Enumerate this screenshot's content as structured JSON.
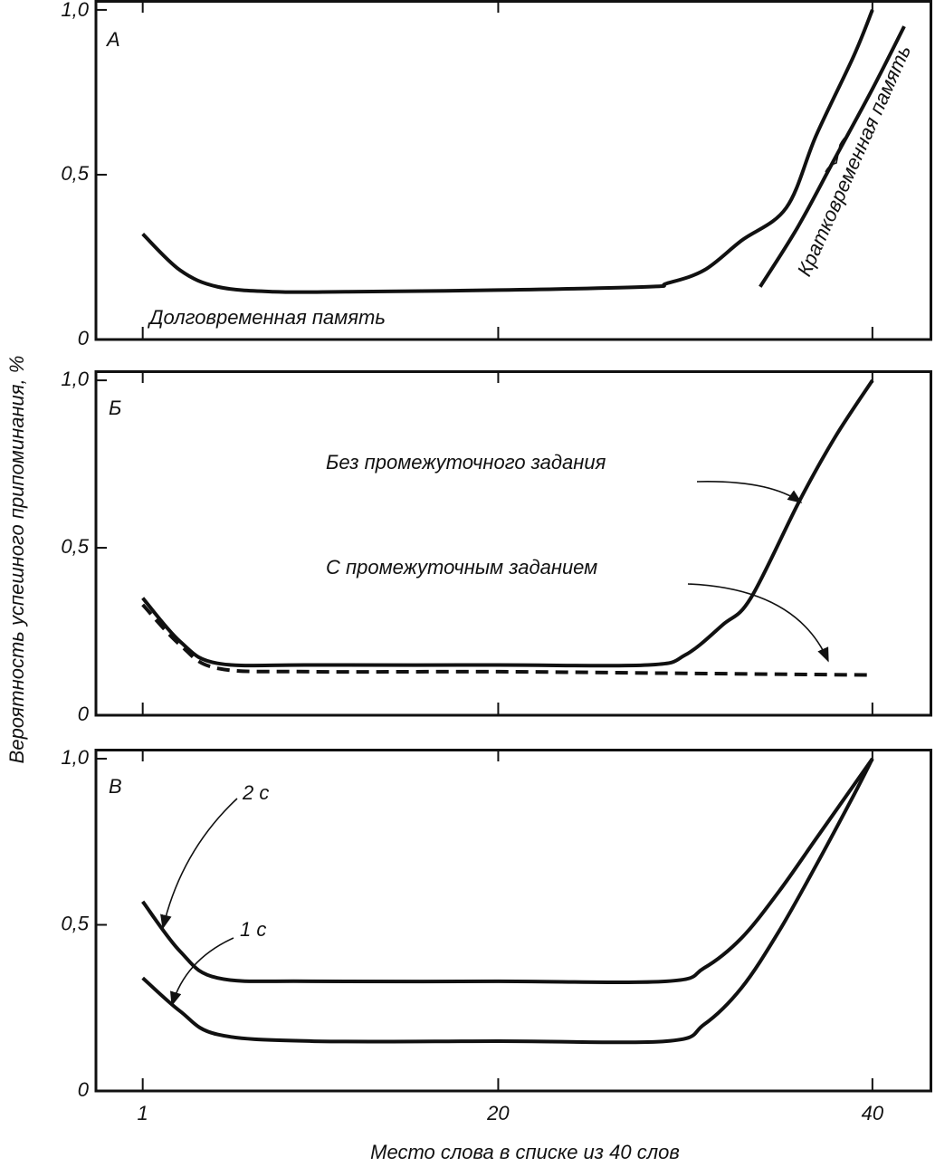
{
  "chart_data": [
    {
      "type": "line",
      "label": "А",
      "xlim": [
        -1.5,
        43.2
      ],
      "ylim": [
        0,
        1.03
      ],
      "xticks": [
        1,
        20,
        40
      ],
      "yticks": [
        0,
        {
          "value": 0.5,
          "label": "0,5"
        },
        {
          "value": 1,
          "label": "1,0"
        }
      ],
      "annotations": [
        "Долговременная память",
        "Кратковременная память"
      ],
      "series": [
        {
          "color": "#111111",
          "dashed": false,
          "x": [
            1,
            3,
            5,
            8,
            12,
            20,
            28,
            29,
            31,
            33,
            35.4,
            37,
            39,
            40
          ],
          "values": [
            0.32,
            0.21,
            0.16,
            0.145,
            0.145,
            0.15,
            0.16,
            0.17,
            0.21,
            0.3,
            0.4,
            0.62,
            0.86,
            1.0
          ]
        },
        {
          "color": "#111111",
          "dashed": false,
          "x": [
            34,
            36,
            38,
            40,
            41.7
          ],
          "values": [
            0.16,
            0.34,
            0.55,
            0.76,
            0.95
          ]
        }
      ]
    },
    {
      "type": "line",
      "label": "Б",
      "xlim": [
        -1.5,
        43.2
      ],
      "ylim": [
        0,
        1.03
      ],
      "xticks": [
        1,
        20,
        40
      ],
      "yticks": [
        0,
        {
          "value": 0.5,
          "label": "0,5"
        },
        {
          "value": 1,
          "label": "1,0"
        }
      ],
      "series": [
        {
          "name": "Без промежуточного задания",
          "color": "#111111",
          "dashed": false,
          "x": [
            1,
            3,
            5,
            10,
            20,
            28,
            30,
            32,
            33.5,
            36.1,
            38,
            40
          ],
          "values": [
            0.35,
            0.22,
            0.155,
            0.15,
            0.15,
            0.15,
            0.18,
            0.27,
            0.35,
            0.64,
            0.83,
            1.0
          ]
        },
        {
          "name": "С промежуточным заданием",
          "color": "#111111",
          "dashed": true,
          "x": [
            1,
            3,
            5,
            10,
            20,
            30,
            40
          ],
          "values": [
            0.33,
            0.21,
            0.14,
            0.13,
            0.13,
            0.125,
            0.12
          ]
        }
      ]
    },
    {
      "type": "line",
      "label": "В",
      "xlabel": "Место слова в списке из 40 слов",
      "ylabel": "Вероятность успешного припоминания, %",
      "xlim": [
        -1.5,
        43.2
      ],
      "ylim": [
        0,
        1.03
      ],
      "xticks": [
        1,
        20,
        40
      ],
      "yticks": [
        0,
        {
          "value": 0.5,
          "label": "0,5"
        },
        {
          "value": 1,
          "label": "1,0"
        }
      ],
      "series": [
        {
          "name": "2 с",
          "color": "#111111",
          "dashed": false,
          "x": [
            1,
            3,
            5,
            10,
            20,
            29,
            31,
            33,
            35,
            37,
            39,
            40
          ],
          "values": [
            0.57,
            0.42,
            0.34,
            0.33,
            0.33,
            0.33,
            0.37,
            0.46,
            0.6,
            0.76,
            0.92,
            1.0
          ]
        },
        {
          "name": "1 с",
          "color": "#111111",
          "dashed": false,
          "x": [
            1,
            3,
            5,
            10,
            20,
            29,
            31,
            33,
            35,
            37,
            39,
            40
          ],
          "values": [
            0.34,
            0.24,
            0.17,
            0.15,
            0.15,
            0.15,
            0.2,
            0.31,
            0.48,
            0.68,
            0.89,
            1.0
          ]
        }
      ]
    }
  ]
}
